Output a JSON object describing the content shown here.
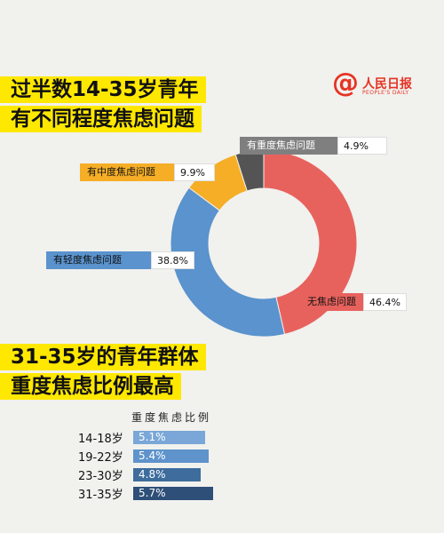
{
  "title1": {
    "line1": "过半数14-35岁青年",
    "line2": "有不同程度焦虑问题"
  },
  "logo": {
    "symbol": "@",
    "name": "人民日报",
    "sub": "PEOPLE'S DAILY"
  },
  "title2": {
    "line1": "31-35岁的青年群体",
    "line2": "重度焦虑比例最高"
  },
  "chart_data": [
    {
      "type": "pie",
      "labels": [
        "无焦虑问题",
        "有轻度焦虑问题",
        "有中度焦虑问题",
        "有重度焦虑问题"
      ],
      "values": [
        46.4,
        38.8,
        9.9,
        4.9
      ],
      "value_labels": [
        "46.4%",
        "38.8%",
        "9.9%",
        "4.9%"
      ],
      "colors": [
        "#e8625d",
        "#5a93cd",
        "#f5ae26",
        "#545454"
      ]
    },
    {
      "type": "bar",
      "title": "重度焦虑比例",
      "categories": [
        "14-18岁",
        "19-22岁",
        "23-30岁",
        "31-35岁"
      ],
      "values": [
        5.1,
        5.4,
        4.8,
        5.7
      ],
      "value_labels": [
        "5.1%",
        "5.4%",
        "4.8%",
        "5.7%"
      ],
      "colors": [
        "#7aa7d7",
        "#5e93cc",
        "#3d6c9d",
        "#2d4f78"
      ]
    }
  ]
}
